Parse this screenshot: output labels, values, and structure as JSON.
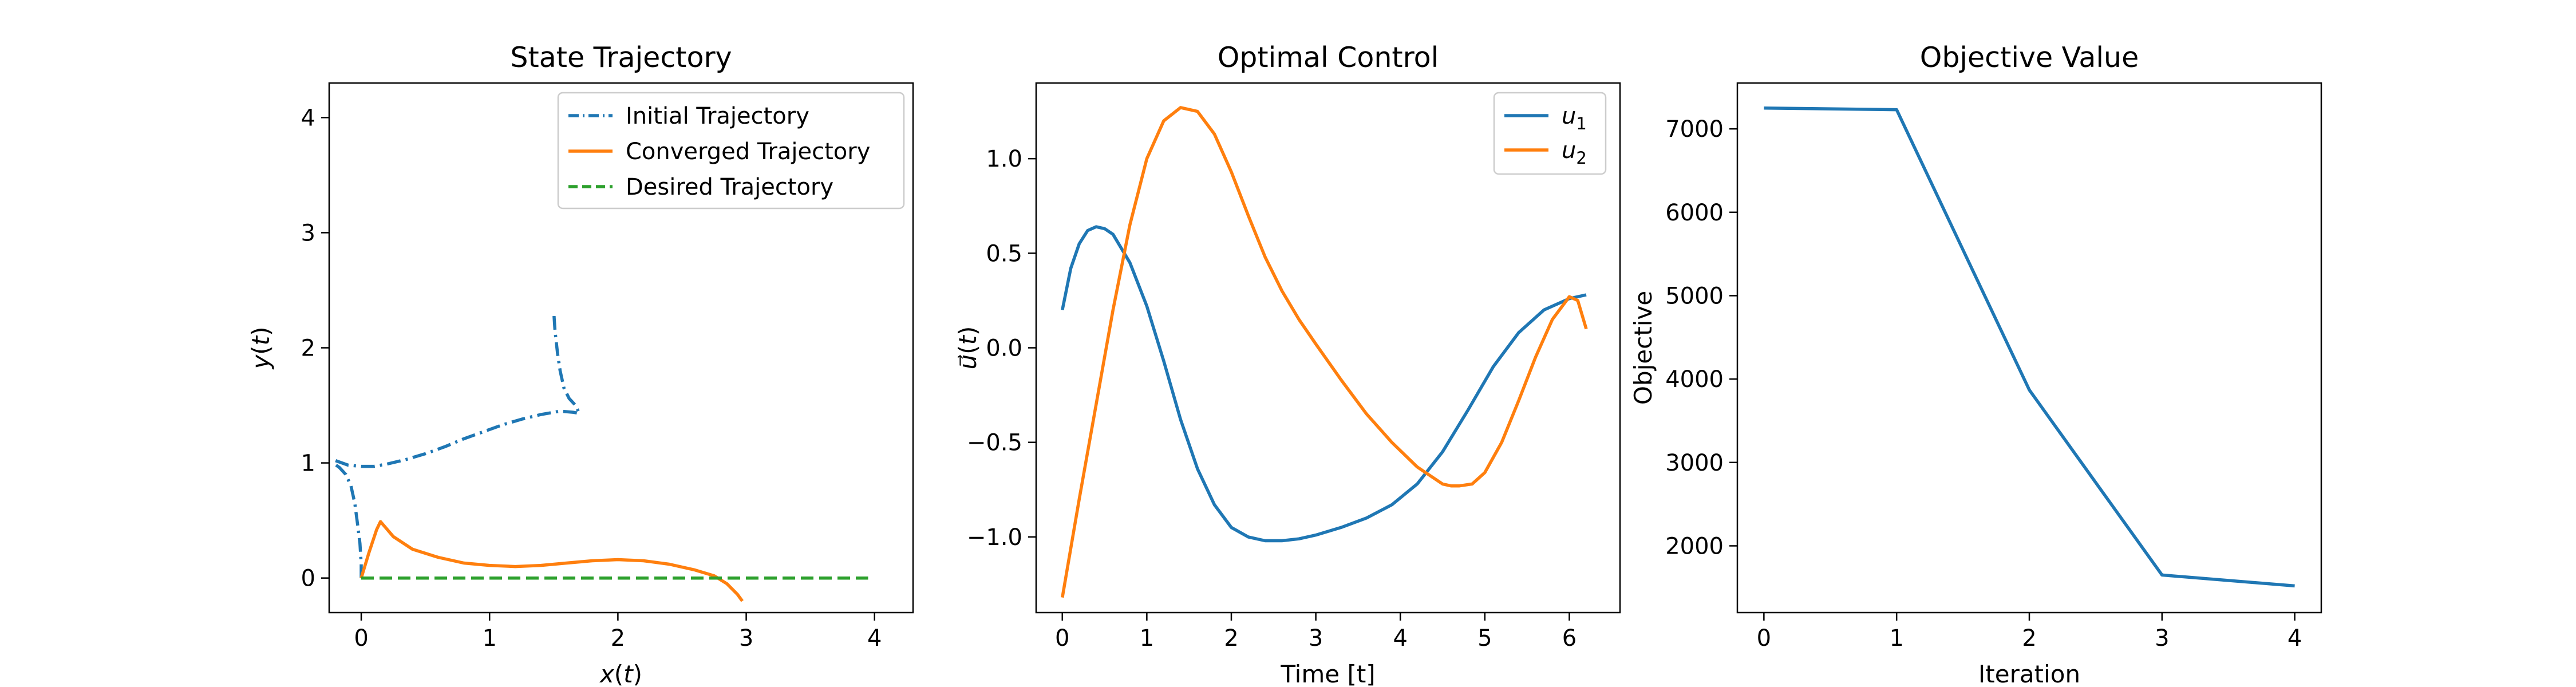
{
  "chart_data": [
    {
      "type": "line",
      "title": "State Trajectory",
      "xlabel": "x(t)",
      "ylabel": "y(t)",
      "xlim": [
        -0.25,
        4.3
      ],
      "ylim": [
        -0.3,
        4.3
      ],
      "xticks": [
        0,
        1,
        2,
        3,
        4
      ],
      "yticks": [
        0,
        1,
        2,
        3,
        4
      ],
      "legend_position": "upper-right",
      "series": [
        {
          "name": "Initial Trajectory",
          "color": "#1f77b4",
          "style": "dashdot",
          "segments": [
            {
              "x": [
                0.0,
                0.0,
                -0.01,
                -0.03,
                -0.05,
                -0.08,
                -0.12,
                -0.17,
                -0.22
              ],
              "y": [
                0.0,
                0.12,
                0.3,
                0.48,
                0.65,
                0.8,
                0.9,
                0.96,
                1.0
              ]
            },
            {
              "x": [
                -0.2,
                -0.1,
                0.0,
                0.1,
                0.2,
                0.35,
                0.5,
                0.65,
                0.8,
                0.95,
                1.1,
                1.25,
                1.4,
                1.55,
                1.65,
                1.7,
                1.67,
                1.62,
                1.58,
                1.55,
                1.53,
                1.51,
                1.5
              ],
              "y": [
                1.02,
                0.98,
                0.97,
                0.97,
                0.99,
                1.03,
                1.08,
                1.14,
                1.21,
                1.27,
                1.33,
                1.38,
                1.42,
                1.45,
                1.44,
                1.43,
                1.5,
                1.56,
                1.65,
                1.8,
                1.95,
                2.15,
                2.32
              ]
            }
          ]
        },
        {
          "name": "Converged Trajectory",
          "color": "#ff7f0e",
          "style": "solid",
          "segments": [
            {
              "x": [
                0.0,
                0.06,
                0.12,
                0.15,
                0.25,
                0.4,
                0.6,
                0.8,
                1.0,
                1.2,
                1.4,
                1.6,
                1.8,
                2.0,
                2.2,
                2.4,
                2.6,
                2.75,
                2.85,
                2.93,
                2.97
              ],
              "y": [
                0.0,
                0.22,
                0.42,
                0.49,
                0.36,
                0.25,
                0.18,
                0.13,
                0.11,
                0.1,
                0.11,
                0.13,
                0.15,
                0.16,
                0.15,
                0.12,
                0.07,
                0.02,
                -0.05,
                -0.14,
                -0.2
              ]
            }
          ]
        },
        {
          "name": "Desired Trajectory",
          "color": "#2ca02c",
          "style": "dashed",
          "segments": [
            {
              "x": [
                0.0,
                3.95
              ],
              "y": [
                0.0,
                0.0
              ]
            }
          ]
        }
      ]
    },
    {
      "type": "line",
      "title": "Optimal Control",
      "xlabel": "Time [t]",
      "ylabel": "u⃗(t)",
      "xlim": [
        -0.31,
        6.6
      ],
      "ylim": [
        -1.4,
        1.4
      ],
      "xticks": [
        0,
        1,
        2,
        3,
        4,
        5,
        6
      ],
      "yticks": [
        -1.0,
        -0.5,
        0.0,
        0.5,
        1.0
      ],
      "ytick_labels": [
        "−1.0",
        "−0.5",
        "0.0",
        "0.5",
        "1.0"
      ],
      "legend_position": "upper-right",
      "series": [
        {
          "name": "u",
          "subscript": "1",
          "color": "#1f77b4",
          "style": "solid",
          "x": [
            0.0,
            0.1,
            0.2,
            0.3,
            0.4,
            0.5,
            0.6,
            0.8,
            1.0,
            1.2,
            1.4,
            1.6,
            1.8,
            2.0,
            2.2,
            2.4,
            2.6,
            2.8,
            3.0,
            3.3,
            3.6,
            3.9,
            4.2,
            4.5,
            4.8,
            5.1,
            5.4,
            5.7,
            6.0,
            6.2
          ],
          "values": [
            0.2,
            0.42,
            0.55,
            0.62,
            0.64,
            0.63,
            0.6,
            0.45,
            0.22,
            -0.07,
            -0.38,
            -0.64,
            -0.83,
            -0.95,
            -1.0,
            -1.02,
            -1.02,
            -1.01,
            -0.99,
            -0.95,
            -0.9,
            -0.83,
            -0.72,
            -0.55,
            -0.33,
            -0.1,
            0.08,
            0.2,
            0.26,
            0.28
          ]
        },
        {
          "name": "u",
          "subscript": "2",
          "color": "#ff7f0e",
          "style": "solid",
          "x": [
            0.0,
            0.2,
            0.4,
            0.6,
            0.8,
            1.0,
            1.2,
            1.4,
            1.6,
            1.8,
            2.0,
            2.2,
            2.4,
            2.6,
            2.8,
            3.0,
            3.3,
            3.6,
            3.9,
            4.2,
            4.5,
            4.6,
            4.7,
            4.85,
            5.0,
            5.2,
            5.4,
            5.6,
            5.8,
            6.0,
            6.1,
            6.2
          ],
          "values": [
            -1.32,
            -0.8,
            -0.3,
            0.2,
            0.65,
            1.0,
            1.2,
            1.27,
            1.25,
            1.13,
            0.93,
            0.7,
            0.48,
            0.3,
            0.15,
            0.02,
            -0.17,
            -0.35,
            -0.5,
            -0.63,
            -0.72,
            -0.73,
            -0.73,
            -0.72,
            -0.66,
            -0.5,
            -0.28,
            -0.05,
            0.15,
            0.27,
            0.25,
            0.1
          ]
        }
      ]
    },
    {
      "type": "line",
      "title": "Objective Value",
      "xlabel": "Iteration",
      "ylabel": "Objective",
      "xlim": [
        -0.2,
        4.2
      ],
      "ylim": [
        1200,
        7550
      ],
      "xticks": [
        0,
        1,
        2,
        3,
        4
      ],
      "yticks": [
        2000,
        3000,
        4000,
        5000,
        6000,
        7000
      ],
      "series": [
        {
          "color": "#1f77b4",
          "style": "solid",
          "x": [
            0,
            1,
            2,
            3,
            4
          ],
          "values": [
            7250,
            7230,
            3870,
            1650,
            1520
          ]
        }
      ]
    }
  ]
}
